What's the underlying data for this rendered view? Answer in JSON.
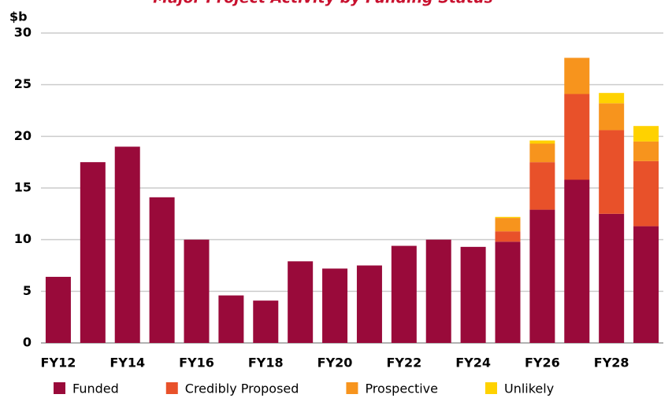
{
  "chart_data": {
    "type": "stacked_bar",
    "title": "Major Project Activity by Funding Status",
    "y_label": "$b",
    "categories": [
      "FY12",
      null,
      "FY14",
      null,
      "FY16",
      null,
      "FY18",
      null,
      "FY20",
      null,
      "FY22",
      null,
      "FY24",
      null,
      "FY26",
      null,
      "FY28",
      null
    ],
    "series": [
      {
        "name": "Funded",
        "color": "#990a3a",
        "values": [
          6.4,
          17.5,
          19.0,
          14.1,
          10.0,
          4.6,
          4.1,
          7.9,
          7.2,
          7.5,
          9.4,
          10.0,
          9.3,
          9.8,
          12.9,
          15.8,
          12.5,
          11.3
        ]
      },
      {
        "name": "Credibly Proposed",
        "color": "#e8512a",
        "values": [
          0,
          0,
          0,
          0,
          0,
          0,
          0,
          0,
          0,
          0,
          0,
          0,
          0,
          1.0,
          4.6,
          8.3,
          8.1,
          6.3
        ]
      },
      {
        "name": "Prospective",
        "color": "#f7941d",
        "values": [
          0,
          0,
          0,
          0,
          0,
          0,
          0,
          0,
          0,
          0,
          0,
          0,
          0,
          1.3,
          1.8,
          3.5,
          2.6,
          1.9
        ]
      },
      {
        "name": "Unlikely",
        "color": "#ffd200",
        "values": [
          0,
          0,
          0,
          0,
          0,
          0,
          0,
          0,
          0,
          0,
          0,
          0,
          0,
          0.1,
          0.3,
          0,
          1.0,
          1.5
        ]
      }
    ],
    "ylim": [
      0,
      30
    ],
    "yticks": [
      0,
      5,
      10,
      15,
      20,
      25,
      30
    ],
    "grid": true,
    "legend": "bottom"
  }
}
